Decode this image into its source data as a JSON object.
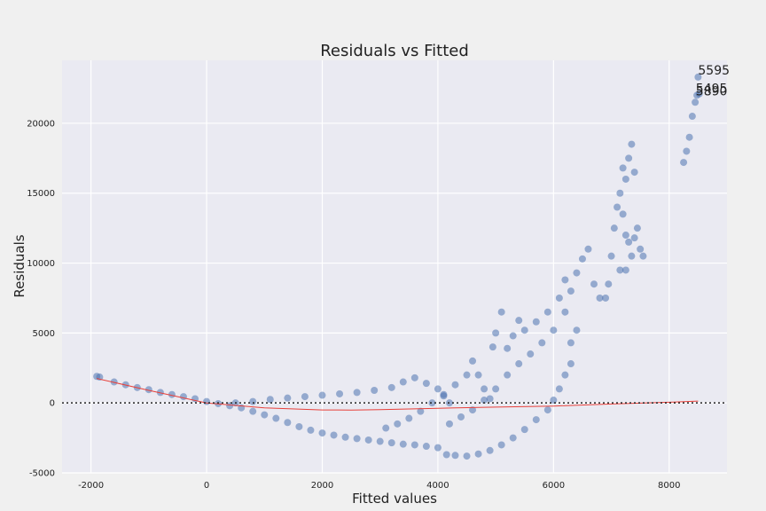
{
  "chart_data": {
    "type": "scatter",
    "title": "Residuals vs Fitted",
    "xlabel": "Fitted values",
    "ylabel": "Residuals",
    "xlim": [
      -2500,
      9000
    ],
    "ylim": [
      -5000,
      24500
    ],
    "xticks": [
      -2000,
      0,
      2000,
      4000,
      6000,
      8000
    ],
    "yticks": [
      -5000,
      0,
      5000,
      10000,
      15000,
      20000
    ],
    "xtick_labels": [
      "-2000",
      "0",
      "2000",
      "4000",
      "6000",
      "8000"
    ],
    "ytick_labels": [
      "-5000",
      "0",
      "5000",
      "10000",
      "15000",
      "20000"
    ],
    "grid": true,
    "reference_line": {
      "y": 0,
      "style": "dotted",
      "color": "#222222"
    },
    "colors": {
      "points": "#4c72b0",
      "smoother": "#e8403a",
      "background": "#eaeaf2",
      "figure": "#f0f0f0"
    },
    "series": [
      {
        "points": [
          [
            -1900,
            1900
          ],
          [
            -1850,
            1850
          ],
          [
            -1600,
            1500
          ],
          [
            -1400,
            1300
          ],
          [
            -1200,
            1100
          ],
          [
            -1000,
            950
          ],
          [
            -800,
            750
          ],
          [
            -600,
            600
          ],
          [
            -400,
            450
          ],
          [
            -200,
            300
          ],
          [
            0,
            100
          ],
          [
            200,
            -50
          ],
          [
            400,
            -200
          ],
          [
            600,
            -350
          ],
          [
            800,
            -600
          ],
          [
            1000,
            -850
          ],
          [
            1200,
            -1100
          ],
          [
            1400,
            -1400
          ],
          [
            1600,
            -1700
          ],
          [
            1800,
            -1950
          ],
          [
            2000,
            -2150
          ],
          [
            2200,
            -2300
          ],
          [
            2400,
            -2450
          ],
          [
            2600,
            -2550
          ],
          [
            2800,
            -2650
          ],
          [
            3000,
            -2750
          ],
          [
            3200,
            -2850
          ],
          [
            3400,
            -2950
          ],
          [
            3600,
            -3000
          ],
          [
            3800,
            -3100
          ],
          [
            4000,
            -3200
          ],
          [
            500,
            0
          ],
          [
            800,
            100
          ],
          [
            1100,
            250
          ],
          [
            1400,
            350
          ],
          [
            1700,
            450
          ],
          [
            2000,
            550
          ],
          [
            2300,
            650
          ],
          [
            2600,
            750
          ],
          [
            2900,
            900
          ],
          [
            3200,
            1100
          ],
          [
            3400,
            1500
          ],
          [
            3600,
            1800
          ],
          [
            3800,
            1400
          ],
          [
            4000,
            1000
          ],
          [
            4100,
            500
          ],
          [
            4200,
            0
          ],
          [
            3100,
            -1800
          ],
          [
            3300,
            -1500
          ],
          [
            3500,
            -1100
          ],
          [
            3700,
            -600
          ],
          [
            3900,
            0
          ],
          [
            4100,
            600
          ],
          [
            4300,
            1300
          ],
          [
            4500,
            2000
          ],
          [
            4600,
            3000
          ],
          [
            4700,
            2000
          ],
          [
            4800,
            1000
          ],
          [
            4900,
            300
          ],
          [
            4150,
            -3700
          ],
          [
            4300,
            -3750
          ],
          [
            4500,
            -3800
          ],
          [
            4700,
            -3650
          ],
          [
            4900,
            -3400
          ],
          [
            5100,
            -3000
          ],
          [
            5300,
            -2500
          ],
          [
            5500,
            -1900
          ],
          [
            5700,
            -1200
          ],
          [
            5900,
            -500
          ],
          [
            6000,
            200
          ],
          [
            6100,
            1000
          ],
          [
            6200,
            2000
          ],
          [
            6300,
            2800
          ],
          [
            4200,
            -1500
          ],
          [
            4400,
            -1000
          ],
          [
            4600,
            -500
          ],
          [
            4800,
            200
          ],
          [
            5000,
            1000
          ],
          [
            5200,
            2000
          ],
          [
            5400,
            2800
          ],
          [
            5600,
            3500
          ],
          [
            5800,
            4300
          ],
          [
            6000,
            5200
          ],
          [
            6200,
            6500
          ],
          [
            6300,
            8000
          ],
          [
            6400,
            9300
          ],
          [
            6500,
            10300
          ],
          [
            6600,
            11000
          ],
          [
            6700,
            8500
          ],
          [
            6800,
            7500
          ],
          [
            6400,
            5200
          ],
          [
            6300,
            4300
          ],
          [
            4950,
            4000
          ],
          [
            5000,
            5000
          ],
          [
            5100,
            6500
          ],
          [
            5200,
            3900
          ],
          [
            5300,
            4800
          ],
          [
            5400,
            5900
          ],
          [
            5500,
            5200
          ],
          [
            5700,
            5800
          ],
          [
            5900,
            6500
          ],
          [
            6100,
            7500
          ],
          [
            6200,
            8800
          ],
          [
            6900,
            7500
          ],
          [
            6950,
            8500
          ],
          [
            7000,
            10500
          ],
          [
            7050,
            12500
          ],
          [
            7100,
            14000
          ],
          [
            7150,
            15000
          ],
          [
            7200,
            13500
          ],
          [
            7250,
            12000
          ],
          [
            7300,
            11500
          ],
          [
            7350,
            10500
          ],
          [
            7400,
            11800
          ],
          [
            7450,
            12500
          ],
          [
            7500,
            11000
          ],
          [
            7550,
            10500
          ],
          [
            7200,
            16800
          ],
          [
            7250,
            16000
          ],
          [
            7300,
            17500
          ],
          [
            7350,
            18500
          ],
          [
            7400,
            16500
          ],
          [
            7150,
            9500
          ],
          [
            7250,
            9500
          ],
          [
            8250,
            17200
          ],
          [
            8300,
            18000
          ],
          [
            8350,
            19000
          ],
          [
            8400,
            20500
          ],
          [
            8450,
            21500
          ],
          [
            8480,
            22000
          ],
          [
            8500,
            23300
          ],
          [
            8520,
            22100
          ]
        ]
      }
    ],
    "smoother": [
      [
        -1900,
        1750
      ],
      [
        -1000,
        900
      ],
      [
        0,
        0
      ],
      [
        1000,
        -350
      ],
      [
        2000,
        -500
      ],
      [
        2500,
        -510
      ],
      [
        3000,
        -480
      ],
      [
        4000,
        -380
      ],
      [
        5000,
        -300
      ],
      [
        6000,
        -220
      ],
      [
        7000,
        -80
      ],
      [
        8000,
        50
      ],
      [
        8500,
        130
      ]
    ],
    "annotations": [
      {
        "text": "5595",
        "x": 8500,
        "y": 23500
      },
      {
        "text": "5495",
        "x": 8460,
        "y": 22200
      },
      {
        "text": "5890",
        "x": 8460,
        "y": 22000
      }
    ]
  }
}
